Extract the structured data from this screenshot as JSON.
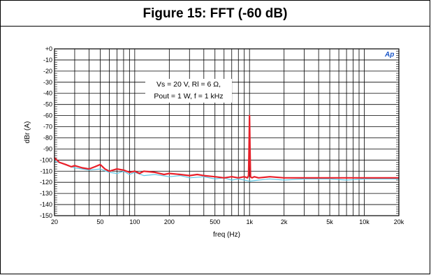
{
  "figure_title": "Figure 15: FFT (-60 dB)",
  "colors": {
    "series_main": "#e8202a",
    "series_secondary": "#5ec8e6",
    "grid": "#000000",
    "logo": "#1a56c8"
  },
  "logo_text": "Ap",
  "chart_data": {
    "type": "line",
    "title": "Figure 15: FFT (-60 dB)",
    "xlabel": "freq (Hz)",
    "ylabel": "dBr (A)",
    "xscale": "log",
    "xlim": [
      20,
      20000
    ],
    "ylim": [
      -150,
      0
    ],
    "grid": true,
    "x_ticks": [
      20,
      50,
      100,
      200,
      500,
      1000,
      2000,
      5000,
      10000,
      20000
    ],
    "x_tick_labels": [
      "20",
      "50",
      "100",
      "200",
      "500",
      "1k",
      "2k",
      "5k",
      "10k",
      "20k"
    ],
    "y_ticks": [
      0,
      -10,
      -20,
      -30,
      -40,
      -50,
      -60,
      -70,
      -80,
      -90,
      -100,
      -110,
      -120,
      -130,
      -140,
      -150
    ],
    "y_tick_labels": [
      "+0",
      "-10",
      "-20",
      "-30",
      "-40",
      "-50",
      "-60",
      "-70",
      "-80",
      "-90",
      "-100",
      "-110",
      "-120",
      "-130",
      "-140",
      "-150"
    ],
    "annotation": [
      "Vs = 20 V, Rl = 6 Ω,",
      "Pout = 1 W, f = 1 kHz"
    ],
    "series": [
      {
        "color": "#5ec8e6",
        "x": [
          20,
          25,
          30,
          35,
          40,
          50,
          60,
          70,
          80,
          90,
          100,
          120,
          150,
          200,
          250,
          300,
          400,
          500,
          600,
          700,
          800,
          900,
          1000,
          1200,
          1500,
          2000,
          3000,
          5000,
          7000,
          10000,
          15000,
          20000
        ],
        "y": [
          -101,
          -104,
          -107,
          -108,
          -109,
          -108,
          -111,
          -112,
          -110,
          -113,
          -111,
          -114,
          -113,
          -115,
          -114,
          -116,
          -115,
          -117,
          -116,
          -118,
          -117,
          -118,
          -119,
          -118,
          -117,
          -118,
          -117,
          -117,
          -118,
          -117,
          -117,
          -117
        ]
      },
      {
        "color": "#e8202a",
        "x": [
          20,
          22,
          25,
          28,
          30,
          35,
          40,
          45,
          50,
          55,
          60,
          70,
          80,
          90,
          100,
          110,
          120,
          150,
          180,
          200,
          250,
          300,
          350,
          400,
          500,
          600,
          700,
          800,
          900,
          960,
          980,
          990,
          1000,
          1010,
          1020,
          1050,
          1100,
          1200,
          1500,
          2000,
          3000,
          5000,
          7000,
          10000,
          15000,
          20000
        ],
        "y": [
          -98,
          -102,
          -104,
          -106,
          -105,
          -107,
          -108,
          -106,
          -104,
          -108,
          -110,
          -108,
          -109,
          -111,
          -110,
          -112,
          -110,
          -111,
          -113,
          -112,
          -113,
          -114,
          -113,
          -114,
          -115,
          -116,
          -115,
          -116,
          -115,
          -116,
          -114,
          -90,
          -60,
          -90,
          -115,
          -116,
          -115,
          -116,
          -115,
          -116,
          -116,
          -116,
          -116,
          -116,
          -116,
          -116
        ]
      }
    ]
  }
}
